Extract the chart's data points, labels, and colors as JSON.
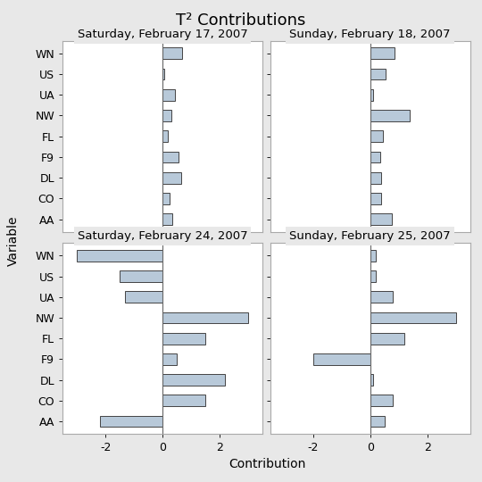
{
  "title": "T² Contributions",
  "variables": [
    "WN",
    "US",
    "UA",
    "NW",
    "FL",
    "F9",
    "DL",
    "CO",
    "AA"
  ],
  "subplots": [
    {
      "title": "Saturday, February 17, 2007",
      "values": [
        0.7,
        0.05,
        0.45,
        0.3,
        0.2,
        0.55,
        0.65,
        0.25,
        0.35
      ]
    },
    {
      "title": "Sunday, February 18, 2007",
      "values": [
        0.85,
        0.55,
        0.1,
        1.4,
        0.45,
        0.35,
        0.4,
        0.4,
        0.75
      ]
    },
    {
      "title": "Saturday, February 24, 2007",
      "values": [
        -3.0,
        -1.5,
        -1.3,
        3.0,
        1.5,
        0.5,
        2.2,
        1.5,
        -2.2
      ]
    },
    {
      "title": "Sunday, February 25, 2007",
      "values": [
        0.2,
        0.2,
        0.8,
        3.0,
        1.2,
        -2.0,
        0.1,
        0.8,
        0.5
      ]
    }
  ],
  "xlim": [
    -3.5,
    3.5
  ],
  "xticks": [
    -2,
    0,
    2
  ],
  "bar_color": "#b8c9d9",
  "bar_edgecolor": "#444444",
  "xlabel": "Contribution",
  "ylabel": "Variable",
  "background_color": "#e8e8e8",
  "panel_bg": "#ffffff",
  "title_fontsize": 13,
  "label_fontsize": 10,
  "tick_fontsize": 9,
  "subplot_title_fontsize": 9.5,
  "subplot_title_bg": "#e8e8e8"
}
